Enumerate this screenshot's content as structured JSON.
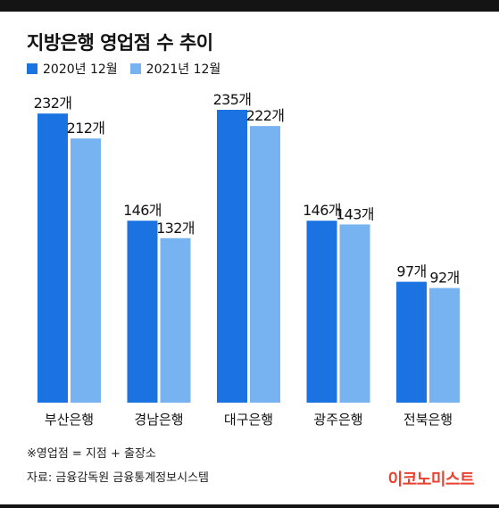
{
  "chart_data": {
    "type": "bar",
    "title": "지방은행 영업점 수 추이",
    "categories": [
      "부산은행",
      "경남은행",
      "대구은행",
      "광주은행",
      "전북은행"
    ],
    "series": [
      {
        "name": "2020년 12월",
        "values": [
          232,
          146,
          235,
          146,
          97
        ],
        "color": "#1a73e0"
      },
      {
        "name": "2021년 12월",
        "values": [
          212,
          132,
          222,
          143,
          92
        ],
        "color": "#77b3f0"
      }
    ],
    "data_labels": [
      [
        "232개",
        "146개",
        "235개",
        "146개",
        "97개"
      ],
      [
        "212개",
        "132개",
        "222개",
        "143개",
        "92개"
      ]
    ],
    "ylim": [
      0,
      235
    ],
    "grid": false,
    "legend_position": "top-left",
    "xlabel": "",
    "ylabel": ""
  },
  "note": "※영업점 = 지점 + 출장소",
  "source": "자료: 금융감독원 금융통계정보시스템",
  "brand": "이코노미스트",
  "colors": {
    "brand": "#e8412f",
    "bar_2020": "#1a73e0",
    "bar_2021": "#77b3f0"
  }
}
